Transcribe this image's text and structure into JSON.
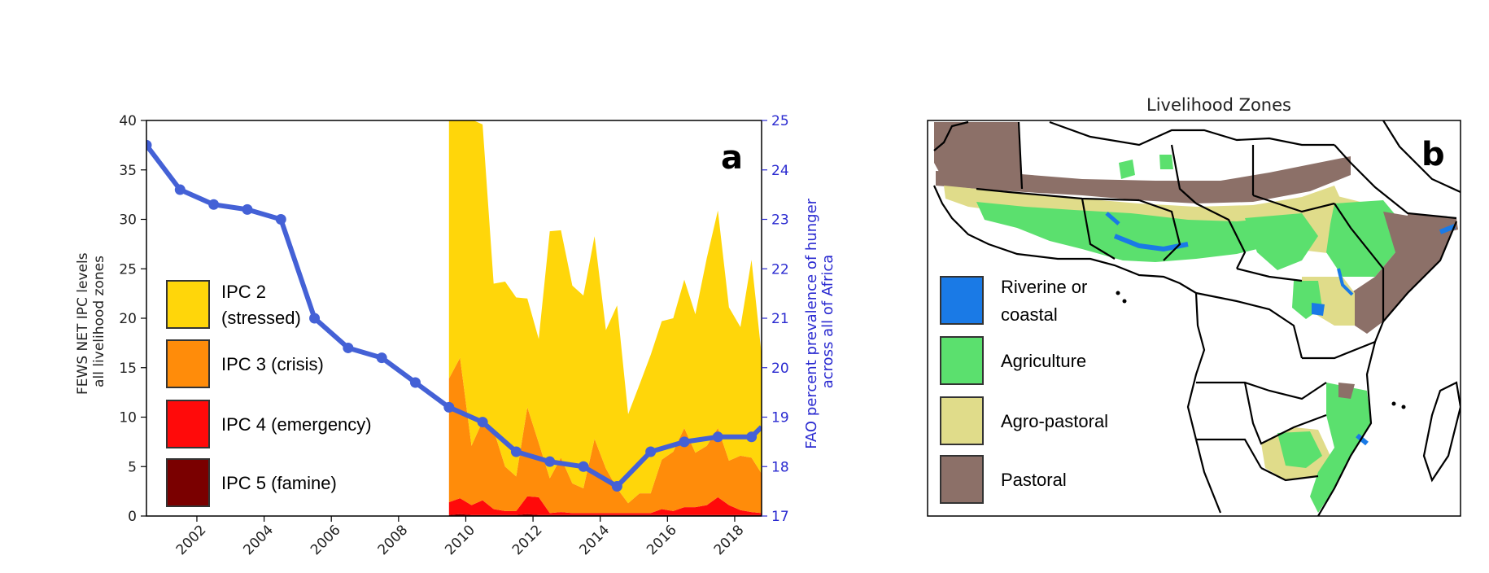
{
  "chart_data": [
    {
      "type": "area",
      "panel": "a",
      "ylabel": [
        "FEWS NET IPC levels",
        "all livelihood zones"
      ],
      "y2label": [
        "FAO percent prevalence of hunger",
        "across all of Africa"
      ],
      "xlim": [
        2000.5,
        2018.8
      ],
      "ylim": [
        0,
        40
      ],
      "y2lim": [
        17,
        25
      ],
      "xticks": [
        "2002",
        "2004",
        "2006",
        "2008",
        "2010",
        "2012",
        "2014",
        "2016",
        "2018"
      ],
      "yticks": [
        "0",
        "5",
        "10",
        "15",
        "20",
        "25",
        "30",
        "35",
        "40"
      ],
      "y2ticks": [
        "17",
        "18",
        "19",
        "20",
        "21",
        "22",
        "23",
        "24",
        "25"
      ],
      "area_x": [
        2009.5,
        2009.83,
        2010.17,
        2010.5,
        2010.83,
        2011.17,
        2011.5,
        2011.83,
        2012.17,
        2012.5,
        2012.83,
        2013.17,
        2013.5,
        2013.83,
        2014.17,
        2014.5,
        2014.83,
        2015.17,
        2015.5,
        2015.83,
        2016.17,
        2016.5,
        2016.83,
        2017.17,
        2017.5,
        2017.83,
        2018.17,
        2018.5,
        2018.8
      ],
      "series": [
        {
          "name": "IPC 5 (famine)",
          "color": "#7a0000",
          "values": [
            0.1,
            0.2,
            0.1,
            0.1,
            0.1,
            0.1,
            0.1,
            0.2,
            0.1,
            0.1,
            0.1,
            0.1,
            0.1,
            0.1,
            0.1,
            0.1,
            0.1,
            0.1,
            0.1,
            0.1,
            0.1,
            0.1,
            0.1,
            0.1,
            0.1,
            0.1,
            0.1,
            0.1,
            0.1
          ]
        },
        {
          "name": "IPC 4 (emergency)",
          "color": "#ff0a0a",
          "values": [
            1.3,
            1.6,
            1.0,
            1.5,
            0.6,
            0.4,
            0.4,
            1.8,
            1.8,
            0.2,
            0.3,
            0.2,
            0.2,
            0.2,
            0.2,
            0.2,
            0.2,
            0.2,
            0.2,
            0.6,
            0.4,
            0.8,
            0.8,
            1.0,
            1.8,
            1.0,
            0.5,
            0.3,
            0.2
          ]
        },
        {
          "name": "IPC 3 (crisis)",
          "color": "#ff8c0a",
          "values": [
            12.5,
            14.2,
            6.0,
            8.0,
            8.0,
            4.5,
            3.5,
            9.0,
            5.5,
            3.5,
            5.5,
            3.0,
            2.5,
            7.5,
            4.5,
            2.5,
            1.0,
            2.0,
            2.0,
            5.0,
            6.0,
            8.0,
            5.5,
            6.0,
            7.0,
            4.5,
            5.5,
            5.5,
            4.0
          ]
        },
        {
          "name": "IPC 2 (stressed)",
          "color": "#ffd60a",
          "values": [
            28.0,
            24.0,
            33.0,
            30.0,
            14.8,
            18.7,
            18.1,
            11.0,
            10.5,
            25.0,
            23.0,
            20.0,
            19.5,
            20.5,
            14.0,
            18.5,
            9.0,
            11.0,
            14.0,
            14.0,
            13.5,
            15.0,
            14.0,
            19.0,
            22.0,
            15.5,
            13.0,
            20.0,
            12.0
          ]
        }
      ],
      "hunger_line": {
        "color": "#4461d6",
        "axis": "right",
        "x": [
          2000.5,
          2001.5,
          2002.5,
          2003.5,
          2004.5,
          2005.5,
          2006.5,
          2007.5,
          2008.5,
          2009.5,
          2010.5,
          2011.5,
          2012.5,
          2013.5,
          2014.5,
          2015.5,
          2016.5,
          2017.5,
          2018.5,
          2018.8
        ],
        "values": [
          24.5,
          23.6,
          23.3,
          23.2,
          23.0,
          21.0,
          20.4,
          20.2,
          19.7,
          19.2,
          18.9,
          18.3,
          18.1,
          18.0,
          17.6,
          18.3,
          18.5,
          18.6,
          18.6,
          18.8
        ],
        "markers_until_index": 18
      },
      "legend": [
        {
          "label_lines": [
            "IPC 2",
            "(stressed)"
          ],
          "color": "#ffd60a"
        },
        {
          "label_lines": [
            "IPC 3 (crisis)"
          ],
          "color": "#ff8c0a"
        },
        {
          "label_lines": [
            "IPC 4 (emergency)"
          ],
          "color": "#ff0a0a"
        },
        {
          "label_lines": [
            "IPC 5 (famine)"
          ],
          "color": "#7a0000"
        }
      ],
      "panel_label": "a"
    }
  ],
  "map": {
    "title": "Livelihood Zones",
    "panel_label": "b",
    "legend": [
      {
        "label_lines": [
          "Riverine or",
          " coastal"
        ],
        "color": "#1a7ae6"
      },
      {
        "label_lines": [
          "Agriculture"
        ],
        "color": "#5be06e"
      },
      {
        "label_lines": [
          "Agro-pastoral"
        ],
        "color": "#e0dc8a"
      },
      {
        "label_lines": [
          "Pastoral"
        ],
        "color": "#8c7068"
      }
    ]
  }
}
